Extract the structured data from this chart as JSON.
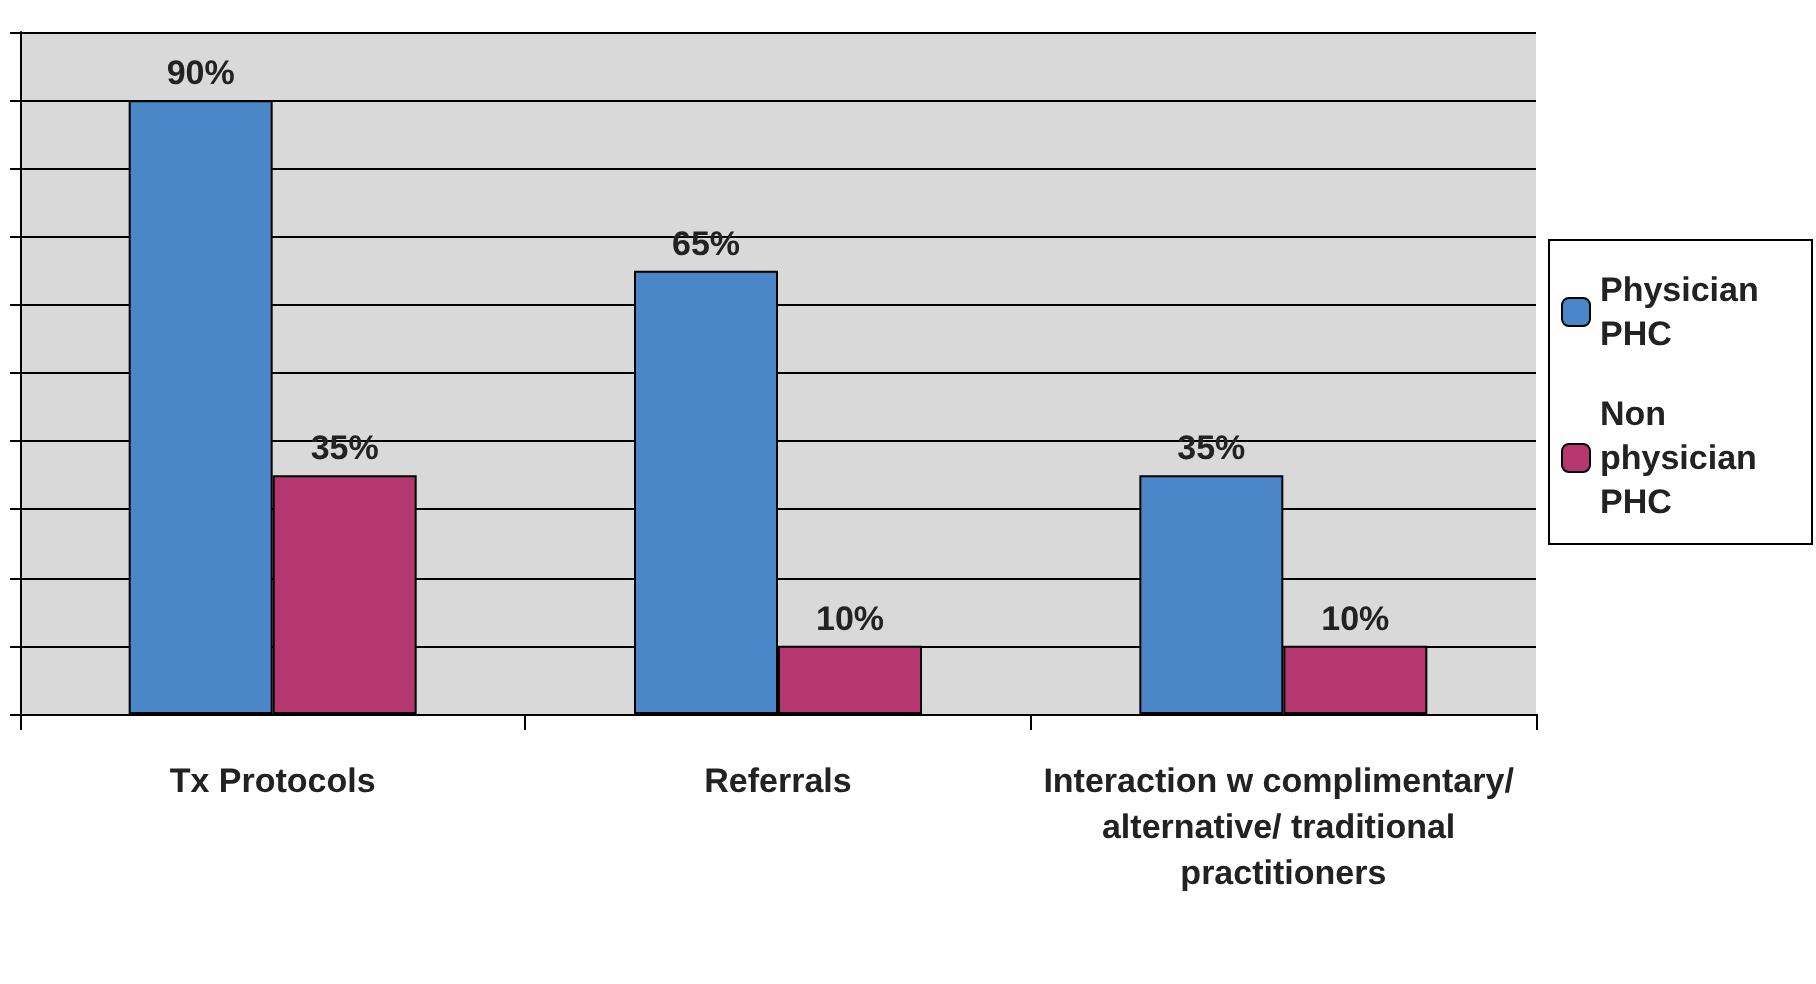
{
  "chart_data": {
    "type": "bar",
    "categories": [
      "Tx Protocols",
      "Referrals",
      "Interaction w complimentary/ alternative/ traditional practitioners"
    ],
    "series": [
      {
        "name": "Physician PHC",
        "color": "#4a86c8",
        "values": [
          90,
          65,
          35
        ],
        "value_labels": [
          "90%",
          "65%",
          "35%"
        ]
      },
      {
        "name": "Non physician PHC",
        "color": "#b5376f",
        "values": [
          35,
          10,
          10
        ],
        "value_labels": [
          "35%",
          "10%",
          "10%"
        ]
      }
    ],
    "ylim": [
      0,
      100
    ],
    "yticks": [
      {
        "value": 0,
        "label": null
      },
      {
        "value": 10,
        "label": null
      },
      {
        "value": 20,
        "label": null
      },
      {
        "value": 30,
        "label": null
      },
      {
        "value": 40,
        "label": null
      },
      {
        "value": 50,
        "label": null
      },
      {
        "value": 60,
        "label": null
      },
      {
        "value": 70,
        "label": null
      },
      {
        "value": 80,
        "label": null
      },
      {
        "value": 90,
        "label": null
      },
      {
        "value": 100,
        "label": null
      }
    ],
    "grid": "y",
    "legend": "right",
    "tick_labels": "x"
  }
}
